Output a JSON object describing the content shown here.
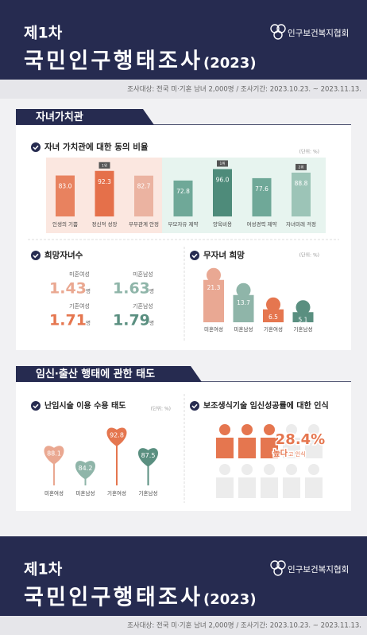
{
  "header": {
    "edition": "제1차",
    "title": "국민인구행태조사",
    "year": "(2023)",
    "org": "인구보건복지협회",
    "survey": "조사대상: 전국 미·기혼 남녀 2,000명 / 조사기간: 2023.10.23. ~ 2023.11.13."
  },
  "section1": {
    "title": "자녀가치관",
    "values_chart": {
      "title": "자녀 가치관에 대한 동의 비율",
      "unit": "(단위: %)",
      "categories": [
        "인생의 기쁨",
        "정신적 성장",
        "부부관계 안정",
        "부모자유 제약",
        "양육비용",
        "여성경력 제약",
        "자녀미래 걱정"
      ],
      "values": [
        83.0,
        92.3,
        82.7,
        72.8,
        96.0,
        77.6,
        88.8
      ],
      "value_labels": [
        "83.0",
        "92.3",
        "82.7",
        "72.8",
        "96.0",
        "77.6",
        "88.8"
      ],
      "colors": [
        "#e8825f",
        "#e5704a",
        "#ebb3a1",
        "#6fa898",
        "#4e8b7a",
        "#6fa898",
        "#9cc4b7"
      ],
      "ranks": [
        null,
        "1위",
        null,
        null,
        "1위",
        null,
        "2위"
      ]
    },
    "desired_children": {
      "title": "희망자녀수",
      "unit": "명",
      "items": [
        {
          "label": "미혼여성",
          "value": 1.43,
          "color": "#eaa891"
        },
        {
          "label": "미혼남성",
          "value": 1.63,
          "color": "#8fb5a9"
        },
        {
          "label": "기혼여성",
          "value": 1.71,
          "color": "#e5764f"
        },
        {
          "label": "기혼남성",
          "value": 1.79,
          "color": "#5a8f80"
        }
      ]
    },
    "childfree": {
      "title": "무자녀 희망",
      "unit": "(단위: %)",
      "categories": [
        "미혼여성",
        "미혼남성",
        "기혼여성",
        "기혼남성"
      ],
      "values": [
        21.3,
        13.7,
        6.5,
        5.1
      ],
      "colors": [
        "#e9a893",
        "#8fb5a9",
        "#e5764f",
        "#5a8f80"
      ]
    }
  },
  "section2": {
    "title": "임신·출산 행태에 관한 태도",
    "infertility": {
      "title": "난임시술 이용 수용 태도",
      "unit": "(단위: %)",
      "categories": [
        "미혼여성",
        "미혼남성",
        "기혼여성",
        "기혼남성"
      ],
      "values": [
        88.1,
        84.2,
        92.8,
        87.5
      ],
      "colors": [
        "#eaa891",
        "#8fb5a9",
        "#e5764f",
        "#5a8f80"
      ]
    },
    "art": {
      "title": "보조생식기술 임신성공률에 대한 인식",
      "value": 28.4,
      "value_label": "28.4%",
      "text": "높다",
      "suffix": "고 인식",
      "color": "#e5764f"
    }
  }
}
